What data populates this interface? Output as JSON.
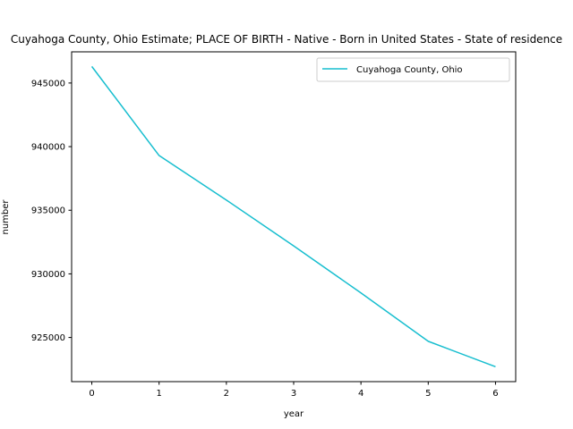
{
  "chart_data": {
    "type": "line",
    "title": "Cuyahoga County, Ohio Estimate; PLACE OF BIRTH - Native - Born in United States - State of residence",
    "xlabel": "year",
    "ylabel": "number",
    "x": [
      0,
      1,
      2,
      3,
      4,
      5,
      6
    ],
    "xticks": [
      "0",
      "1",
      "2",
      "3",
      "4",
      "5",
      "6"
    ],
    "yticks": [
      "925000",
      "930000",
      "935000",
      "940000",
      "945000"
    ],
    "xlim": [
      -0.3,
      6.3
    ],
    "ylim": [
      921530,
      947450
    ],
    "grid": false,
    "legend_position": "top-right",
    "series": [
      {
        "name": "Cuyahoga County, Ohio",
        "color": "#17becf",
        "values": [
          946300,
          939300,
          935800,
          932200,
          928500,
          924700,
          922700
        ]
      }
    ]
  }
}
